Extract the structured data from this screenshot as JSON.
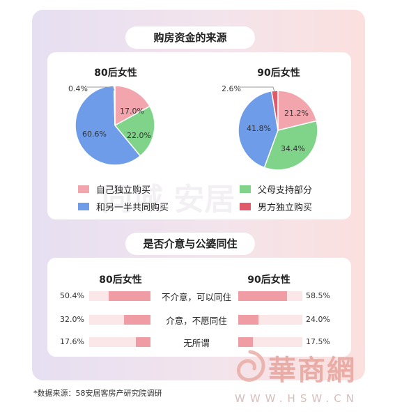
{
  "section1": {
    "title": "购房资金的来源"
  },
  "section2": {
    "title": "是否介意与公婆同住"
  },
  "pie_colors": {
    "self": "#f3a5ad",
    "parents": "#7fd489",
    "half": "#6e9ce8",
    "husband": "#e05a6c"
  },
  "legend": [
    {
      "label": "自己独立购买",
      "color": "#f3a5ad"
    },
    {
      "label": "父母支持部分",
      "color": "#7fd489"
    },
    {
      "label": "和另一半共同购买",
      "color": "#6e9ce8"
    },
    {
      "label": "男方独立购买",
      "color": "#e05a6c"
    }
  ],
  "chart_data": [
    {
      "type": "pie",
      "title": "80后女性",
      "slices": [
        {
          "label": "自己独立购买",
          "value": 17.0,
          "text": "17.0%"
        },
        {
          "label": "父母支持部分",
          "value": 22.0,
          "text": "22.0%"
        },
        {
          "label": "和另一半共同购买",
          "value": 60.6,
          "text": "60.6%"
        },
        {
          "label": "男方独立购买",
          "value": 0.4,
          "text": "0.4%"
        }
      ]
    },
    {
      "type": "pie",
      "title": "90后女性",
      "slices": [
        {
          "label": "自己独立购买",
          "value": 21.2,
          "text": "21.2%"
        },
        {
          "label": "父母支持部分",
          "value": 34.4,
          "text": "34.4%"
        },
        {
          "label": "和另一半共同购买",
          "value": 41.8,
          "text": "41.8%"
        },
        {
          "label": "男方独立购买",
          "value": 2.6,
          "text": "2.6%"
        }
      ]
    },
    {
      "type": "bar",
      "categories": [
        "不介意，可以同住",
        "介意，不愿同住",
        "无所谓"
      ],
      "series": [
        {
          "name": "80后女性",
          "values": [
            50.4,
            32.0,
            17.6
          ],
          "labels": [
            "50.4%",
            "32.0%",
            "17.6%"
          ]
        },
        {
          "name": "90后女性",
          "values": [
            58.5,
            24.0,
            17.5
          ],
          "labels": [
            "58.5%",
            "24.0%",
            "17.5%"
          ]
        }
      ]
    }
  ],
  "source": "*数据来源：58安居客房产研究院调研",
  "watermark": {
    "brand": "華商網",
    "domain": "WWW.HSW.CN",
    "center": "同城 安居"
  }
}
